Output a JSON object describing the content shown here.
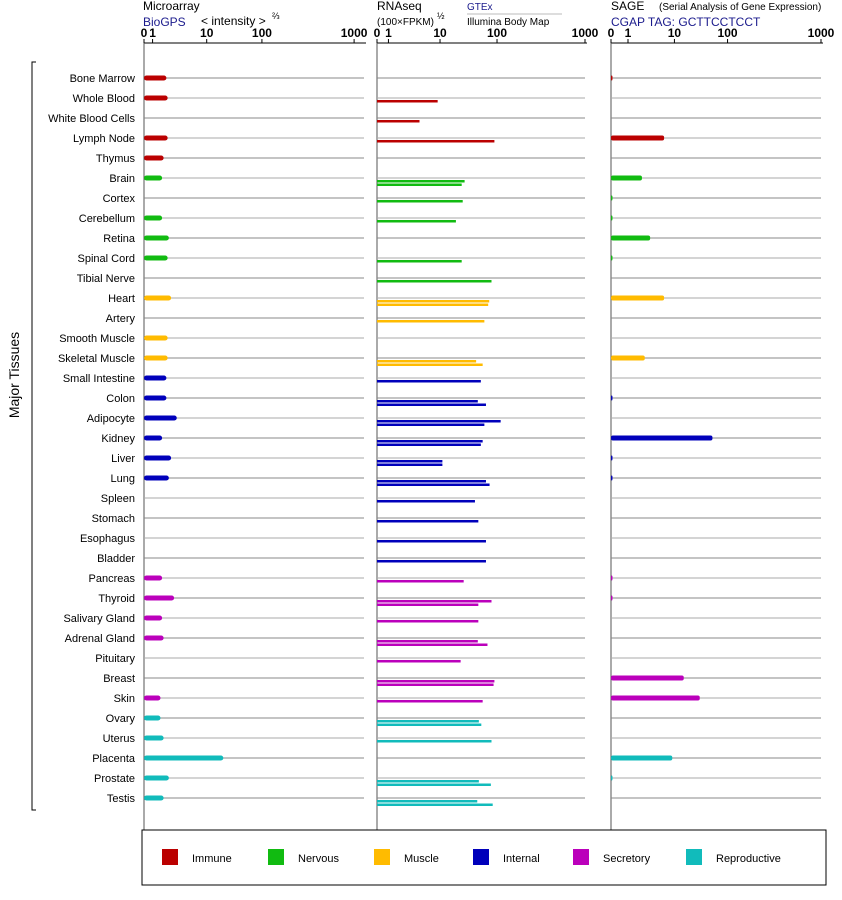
{
  "headers": {
    "microarray": {
      "title": "Microarray",
      "source": "BioGPS",
      "unit_text": "< intensity >",
      "unit_exp": "⅔"
    },
    "rnaseq": {
      "title": "RNAseq",
      "unit_text": "(100×FPKM)",
      "unit_exp": "½",
      "source1": "GTEx",
      "source2": "Illumina Body Map"
    },
    "sage": {
      "title": "SAGE",
      "subtitle": "(Serial Analysis of Gene Expression)",
      "tag_line": "CGAP TAG: GCTTCCTCCT"
    }
  },
  "axis_ticks": [
    "0",
    "1",
    "10",
    "100",
    "1000"
  ],
  "y_axis_label": "Major Tissues",
  "colors": {
    "Immune": "#bb0000",
    "Nervous": "#11bb11",
    "Muscle": "#ffbb00",
    "Internal": "#0000bb",
    "Secretory": "#bb00bb",
    "Reproductive": "#11bbbb"
  },
  "legend": [
    "Immune",
    "Nervous",
    "Muscle",
    "Internal",
    "Secretory",
    "Reproductive"
  ],
  "chart_data": {
    "type": "bar",
    "orientation": "horizontal",
    "x_scale": "power (0, 1, 10, 100, 1000 ticks)",
    "xlim": [
      0,
      1000
    ],
    "panels": [
      "Microarray",
      "RNAseq",
      "SAGE"
    ],
    "tissues": [
      {
        "name": "Bone Marrow",
        "group": "Immune",
        "microarray": 1.8,
        "rnaseq": [],
        "sage": 0.03
      },
      {
        "name": "Whole Blood",
        "group": "Immune",
        "microarray": 1.9,
        "rnaseq": [
          9
        ],
        "sage": null
      },
      {
        "name": "White Blood Cells",
        "group": "Immune",
        "microarray": null,
        "rnaseq": [
          4
        ],
        "sage": null
      },
      {
        "name": "Lymph Node",
        "group": "Immune",
        "microarray": 1.9,
        "rnaseq": [
          90
        ],
        "sage": 6
      },
      {
        "name": "Thymus",
        "group": "Immune",
        "microarray": 1.6,
        "rnaseq": [],
        "sage": null
      },
      {
        "name": "Brain",
        "group": "Nervous",
        "microarray": 1.5,
        "rnaseq": [
          27,
          24
        ],
        "sage": 2.0
      },
      {
        "name": "Cortex",
        "group": "Nervous",
        "microarray": null,
        "rnaseq": [
          25
        ],
        "sage": 0.03
      },
      {
        "name": "Cerebellum",
        "group": "Nervous",
        "microarray": 1.5,
        "rnaseq": [
          19
        ],
        "sage": 0.03
      },
      {
        "name": "Retina",
        "group": "Nervous",
        "microarray": 2.0,
        "rnaseq": [],
        "sage": 3.0
      },
      {
        "name": "Spinal Cord",
        "group": "Nervous",
        "microarray": 1.9,
        "rnaseq": [
          24
        ],
        "sage": 0.03
      },
      {
        "name": "Tibial Nerve",
        "group": "Nervous",
        "microarray": null,
        "rnaseq": [
          80
        ],
        "sage": null
      },
      {
        "name": "Heart",
        "group": "Muscle",
        "microarray": 2.2,
        "rnaseq": [
          73,
          70
        ],
        "sage": 6
      },
      {
        "name": "Artery",
        "group": "Muscle",
        "microarray": null,
        "rnaseq": [
          60
        ],
        "sage": null
      },
      {
        "name": "Smooth Muscle",
        "group": "Muscle",
        "microarray": 1.9,
        "rnaseq": [],
        "sage": null
      },
      {
        "name": "Skeletal Muscle",
        "group": "Muscle",
        "microarray": 1.9,
        "rnaseq": [
          43,
          56
        ],
        "sage": 2.3
      },
      {
        "name": "Small Intestine",
        "group": "Internal",
        "microarray": 1.8,
        "rnaseq": [
          52
        ],
        "sage": null
      },
      {
        "name": "Colon",
        "group": "Internal",
        "microarray": 1.8,
        "rnaseq": [
          46,
          64
        ],
        "sage": 0.03
      },
      {
        "name": "Adipocyte",
        "group": "Internal",
        "microarray": 2.8,
        "rnaseq": [
          110,
          60
        ],
        "sage": null
      },
      {
        "name": "Kidney",
        "group": "Internal",
        "microarray": 1.5,
        "rnaseq": [
          56,
          52
        ],
        "sage": 52
      },
      {
        "name": "Liver",
        "group": "Internal",
        "microarray": 2.2,
        "rnaseq": [
          11,
          11
        ],
        "sage": 0.03
      },
      {
        "name": "Lung",
        "group": "Internal",
        "microarray": 2.0,
        "rnaseq": [
          64,
          74
        ],
        "sage": 0.03
      },
      {
        "name": "Spleen",
        "group": "Internal",
        "microarray": null,
        "rnaseq": [
          41
        ],
        "sage": null
      },
      {
        "name": "Stomach",
        "group": "Internal",
        "microarray": null,
        "rnaseq": [
          47
        ],
        "sage": null
      },
      {
        "name": "Esophagus",
        "group": "Internal",
        "microarray": null,
        "rnaseq": [
          64
        ],
        "sage": null
      },
      {
        "name": "Bladder",
        "group": "Internal",
        "microarray": null,
        "rnaseq": [
          64
        ],
        "sage": null
      },
      {
        "name": "Pancreas",
        "group": "Secretory",
        "microarray": 1.5,
        "rnaseq": [
          26
        ],
        "sage": 0.03
      },
      {
        "name": "Thyroid",
        "group": "Secretory",
        "microarray": 2.5,
        "rnaseq": [
          80,
          47
        ],
        "sage": 0.03
      },
      {
        "name": "Salivary Gland",
        "group": "Secretory",
        "microarray": 1.5,
        "rnaseq": [
          47
        ],
        "sage": null
      },
      {
        "name": "Adrenal Gland",
        "group": "Secretory",
        "microarray": 1.6,
        "rnaseq": [
          46,
          68
        ],
        "sage": null
      },
      {
        "name": "Pituitary",
        "group": "Secretory",
        "microarray": null,
        "rnaseq": [
          23
        ],
        "sage": null
      },
      {
        "name": "Breast",
        "group": "Secretory",
        "microarray": null,
        "rnaseq": [
          90,
          87
        ],
        "sage": 15
      },
      {
        "name": "Skin",
        "group": "Secretory",
        "microarray": 1.4,
        "rnaseq": [
          56
        ],
        "sage": 30
      },
      {
        "name": "Ovary",
        "group": "Reproductive",
        "microarray": 1.4,
        "rnaseq": [
          48,
          53
        ],
        "sage": null
      },
      {
        "name": "Uterus",
        "group": "Reproductive",
        "microarray": 1.6,
        "rnaseq": [
          80
        ],
        "sage": null
      },
      {
        "name": "Placenta",
        "group": "Reproductive",
        "microarray": 20,
        "rnaseq": [],
        "sage": 9
      },
      {
        "name": "Prostate",
        "group": "Reproductive",
        "microarray": 2.0,
        "rnaseq": [
          48,
          78
        ],
        "sage": 0.03
      },
      {
        "name": "Testis",
        "group": "Reproductive",
        "microarray": 1.6,
        "rnaseq": [
          45,
          84
        ],
        "sage": null
      }
    ]
  }
}
